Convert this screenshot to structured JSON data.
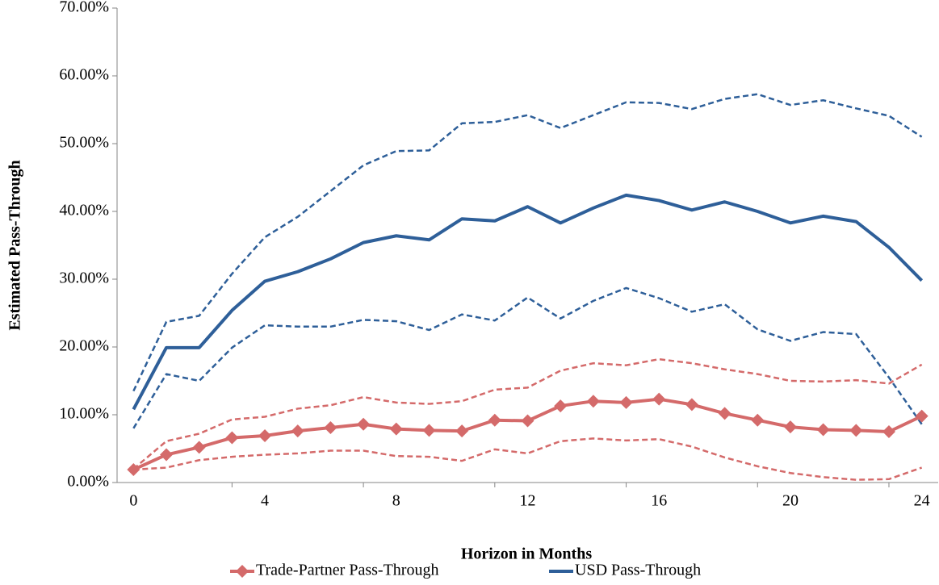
{
  "chart_data": {
    "type": "line",
    "xlabel": "Horizon in Months",
    "ylabel": "Estimated Pass-Through",
    "categories": [
      "0",
      null,
      null,
      null,
      "4",
      null,
      null,
      null,
      "8",
      null,
      null,
      null,
      "12",
      null,
      null,
      null,
      "16",
      null,
      null,
      null,
      "20",
      null,
      null,
      null,
      "24"
    ],
    "ylim": [
      0,
      70
    ],
    "yticks": [
      {
        "value": 0,
        "label": "0.00%"
      },
      {
        "value": 10,
        "label": "10.00%"
      },
      {
        "value": 20,
        "label": "20.00%"
      },
      {
        "value": 30,
        "label": "30.00%"
      },
      {
        "value": 40,
        "label": "40.00%"
      },
      {
        "value": 50,
        "label": "50.00%"
      },
      {
        "value": 60,
        "label": "60.00%"
      },
      {
        "value": 70,
        "label": "70.00%"
      }
    ],
    "grid": false,
    "legend": "bottom",
    "series": [
      {
        "color": "#2e5f99",
        "dashed": true,
        "values": [
          13.5,
          23.7,
          24.6,
          30.8,
          36.2,
          39.2,
          43.0,
          46.8,
          48.9,
          49.0,
          53.0,
          53.2,
          54.2,
          52.3,
          54.2,
          56.1,
          56.0,
          55.1,
          56.6,
          57.3,
          55.7,
          56.4,
          55.2,
          54.1,
          51.0
        ]
      },
      {
        "color": "#2e5f99",
        "dashed": true,
        "values": [
          8.0,
          16.0,
          15.0,
          19.9,
          23.2,
          23.0,
          23.0,
          24.0,
          23.8,
          22.5,
          24.8,
          23.9,
          27.3,
          24.2,
          26.8,
          28.7,
          27.2,
          25.2,
          26.3,
          22.6,
          20.9,
          22.2,
          21.9,
          15.5,
          8.6
        ]
      },
      {
        "color": "#d46a6a",
        "dashed": true,
        "values": [
          2.0,
          6.1,
          7.2,
          9.3,
          9.7,
          10.9,
          11.4,
          12.6,
          11.8,
          11.6,
          12.0,
          13.7,
          14.0,
          16.5,
          17.6,
          17.3,
          18.2,
          17.6,
          16.7,
          16.0,
          15.0,
          14.9,
          15.1,
          14.6,
          17.4
        ]
      },
      {
        "color": "#d46a6a",
        "dashed": true,
        "values": [
          1.9,
          2.2,
          3.3,
          3.8,
          4.1,
          4.3,
          4.7,
          4.7,
          3.9,
          3.8,
          3.2,
          4.9,
          4.3,
          6.1,
          6.5,
          6.2,
          6.4,
          5.3,
          3.7,
          2.4,
          1.4,
          0.8,
          0.4,
          0.5,
          2.2
        ]
      },
      {
        "name": "Trade-Partner Pass-Through",
        "color": "#d46a6a",
        "marker": "diamond",
        "values": [
          1.9,
          4.1,
          5.2,
          6.6,
          6.9,
          7.6,
          8.1,
          8.6,
          7.9,
          7.7,
          7.6,
          9.2,
          9.1,
          11.3,
          12.0,
          11.8,
          12.3,
          11.5,
          10.2,
          9.2,
          8.2,
          7.8,
          7.7,
          7.5,
          9.8
        ]
      },
      {
        "name": "USD Pass-Through",
        "color": "#2e5f99",
        "values": [
          10.8,
          19.9,
          19.9,
          25.4,
          29.7,
          31.1,
          33.0,
          35.4,
          36.4,
          35.8,
          38.9,
          38.6,
          40.7,
          38.3,
          40.5,
          42.4,
          41.6,
          40.2,
          41.4,
          40.0,
          38.3,
          39.3,
          38.5,
          34.7,
          29.8
        ]
      }
    ]
  }
}
